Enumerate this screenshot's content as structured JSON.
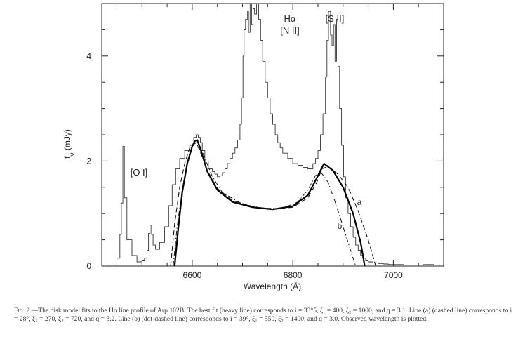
{
  "chart_data": {
    "type": "line",
    "xlabel": "Wavelength (Å)",
    "ylabel": "f_ν (mJy)",
    "xlim": [
      6420,
      7100
    ],
    "ylim": [
      0,
      5.0
    ],
    "x_ticks": [
      6600,
      6800,
      7000
    ],
    "y_ticks": [
      0,
      2,
      4
    ],
    "annotations": [
      {
        "id": "oi",
        "text": "[O I]"
      },
      {
        "id": "ha",
        "text": "Hα"
      },
      {
        "id": "nii",
        "text": "[N II]"
      },
      {
        "id": "sii",
        "text": "[S II]"
      },
      {
        "id": "a",
        "text": "a"
      },
      {
        "id": "b",
        "text": "b"
      }
    ],
    "series": [
      {
        "style": "observed",
        "x": [
          6440,
          6450,
          6456,
          6459,
          6462,
          6465,
          6470,
          6480,
          6490,
          6500,
          6505,
          6510,
          6513,
          6516,
          6519,
          6522,
          6527,
          6535,
          6545,
          6553,
          6560,
          6567,
          6575,
          6585,
          6595,
          6603,
          6608,
          6612,
          6616,
          6620,
          6625,
          6632,
          6640,
          6645,
          6650,
          6655,
          6660,
          6665,
          6670,
          6675,
          6680,
          6685,
          6690,
          6695,
          6698,
          6701,
          6703,
          6706,
          6710,
          6712,
          6715,
          6718,
          6721,
          6724,
          6728,
          6732,
          6736,
          6740,
          6745,
          6750,
          6755,
          6760,
          6765,
          6770,
          6775,
          6780,
          6790,
          6800,
          6810,
          6820,
          6830,
          6840,
          6845,
          6850,
          6855,
          6860,
          6865,
          6868,
          6871,
          6875,
          6878,
          6881,
          6884,
          6887,
          6890,
          6893,
          6897,
          6901,
          6905,
          6910,
          6915,
          6920,
          6925,
          6930,
          6935,
          6940,
          6945,
          6950,
          6960,
          6970,
          6980,
          6990,
          7000,
          7020,
          7040,
          7060,
          7080,
          7100
        ],
        "y": [
          0.02,
          0.15,
          0.6,
          1.2,
          2.28,
          1.3,
          0.5,
          0.2,
          0.08,
          0.1,
          0.15,
          0.3,
          0.62,
          0.78,
          0.6,
          0.4,
          0.32,
          0.45,
          0.75,
          1.15,
          1.55,
          1.85,
          2.05,
          2.2,
          2.3,
          2.45,
          2.5,
          2.45,
          2.35,
          2.2,
          2.0,
          1.85,
          1.8,
          1.75,
          1.7,
          1.72,
          1.78,
          1.85,
          1.95,
          2.05,
          2.15,
          2.25,
          2.4,
          2.7,
          3.2,
          4.0,
          4.5,
          4.7,
          4.85,
          4.45,
          5.0,
          4.6,
          4.9,
          4.8,
          5.0,
          4.7,
          4.3,
          3.9,
          3.5,
          3.2,
          2.9,
          2.7,
          2.5,
          2.35,
          2.25,
          2.15,
          2.05,
          1.95,
          1.92,
          1.88,
          1.85,
          1.95,
          2.05,
          2.2,
          2.5,
          2.9,
          3.6,
          4.3,
          4.85,
          4.4,
          4.2,
          4.6,
          3.9,
          4.7,
          3.8,
          3.0,
          2.3,
          1.7,
          1.3,
          1.0,
          0.75,
          0.55,
          0.4,
          0.3,
          0.2,
          0.15,
          0.1,
          0.08,
          0.06,
          0.05,
          0.04,
          0.03,
          0.03,
          0.02,
          0.02,
          0.03,
          0.02,
          0.02
        ]
      },
      {
        "style": "heavy",
        "x": [
          6565,
          6572,
          6580,
          6590,
          6600,
          6605,
          6610,
          6618,
          6630,
          6650,
          6680,
          6720,
          6760,
          6800,
          6830,
          6850,
          6862,
          6880,
          6900,
          6920,
          6935,
          6943
        ],
        "y": [
          0.0,
          0.7,
          1.4,
          1.95,
          2.28,
          2.38,
          2.4,
          2.18,
          1.8,
          1.45,
          1.22,
          1.12,
          1.08,
          1.14,
          1.35,
          1.72,
          1.95,
          1.82,
          1.5,
          1.0,
          0.45,
          0.0
        ]
      },
      {
        "style": "dashed",
        "x": [
          6557,
          6565,
          6575,
          6585,
          6595,
          6603,
          6608,
          6615,
          6630,
          6650,
          6680,
          6720,
          6760,
          6800,
          6830,
          6848,
          6858,
          6870,
          6890,
          6910,
          6930,
          6950,
          6965
        ],
        "y": [
          0.0,
          0.8,
          1.5,
          1.95,
          2.25,
          2.32,
          2.35,
          2.2,
          1.82,
          1.48,
          1.25,
          1.13,
          1.08,
          1.12,
          1.3,
          1.6,
          1.85,
          1.9,
          1.75,
          1.5,
          1.05,
          0.5,
          0.0
        ]
      },
      {
        "style": "dot-dashed",
        "x": [
          6562,
          6570,
          6580,
          6590,
          6600,
          6607,
          6612,
          6620,
          6640,
          6660,
          6700,
          6740,
          6780,
          6810,
          6830,
          6845,
          6855,
          6870,
          6885,
          6900,
          6915,
          6925
        ],
        "y": [
          0.0,
          0.75,
          1.45,
          2.0,
          2.3,
          2.38,
          2.36,
          2.18,
          1.7,
          1.4,
          1.18,
          1.1,
          1.1,
          1.22,
          1.45,
          1.72,
          1.8,
          1.6,
          1.2,
          0.75,
          0.3,
          0.0
        ]
      }
    ]
  },
  "caption": {
    "fig_label": "Fig. 2.",
    "text": "—The disk model fits to the Hα line profile of Arp 102B. The best fit (heavy line) corresponds to i = 33°5, ξ₁ = 400, ξ₂ = 1000, and q = 3.1. Line (a) (dashed line) corresponds to i = 28°, ξ₁ = 270, ξ₂ = 720, and q = 3.2. Line (b) (dot-dashed line) corresponds to i = 39°, ξ₁ = 550, ξ₂ = 1400, and q = 3.0. Observed wavelength is plotted."
  }
}
